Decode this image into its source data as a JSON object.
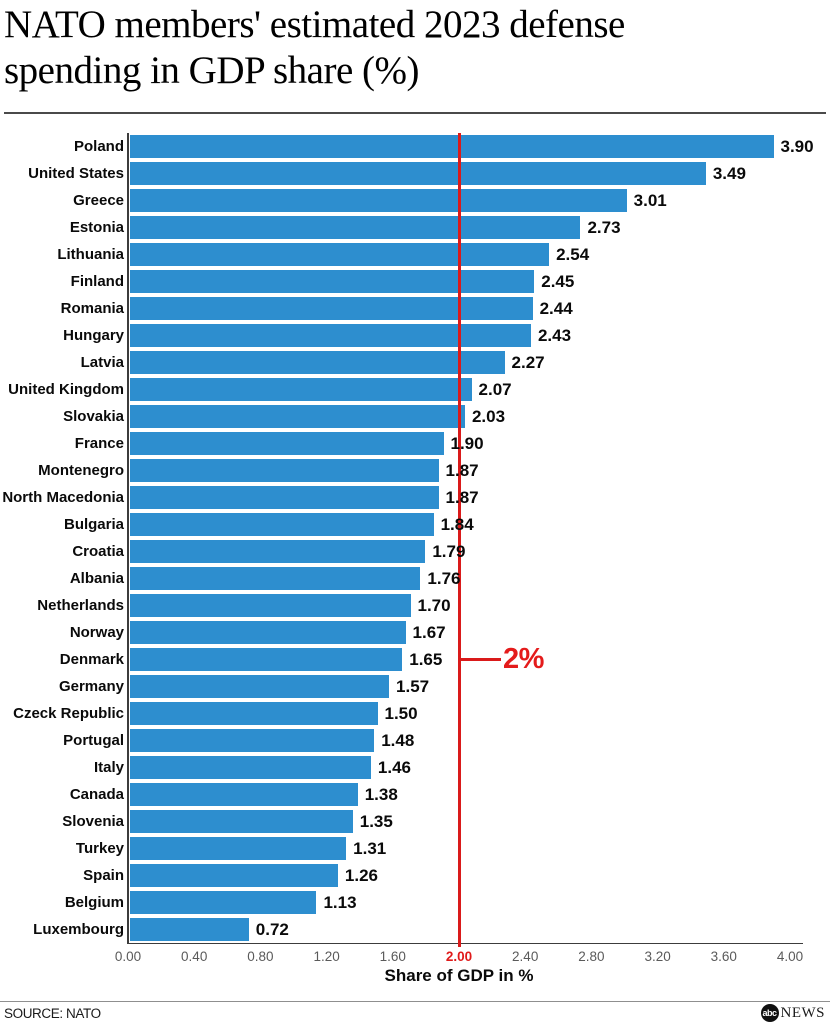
{
  "title": "NATO members' estimated 2023 defense spending in GDP share (%)",
  "title_lines": [
    "NATO members' estimated 2023 defense",
    "spending in GDP share (%)"
  ],
  "colors": {
    "bar": "#2d8ecf",
    "reference_red": "#da1a1a",
    "axis": "#3c3c3c",
    "tick_text": "#5a5a5a"
  },
  "chart_data": {
    "type": "bar",
    "orientation": "horizontal",
    "title": "NATO members' estimated 2023 defense spending in GDP share (%)",
    "categories": [
      "Poland",
      "United States",
      "Greece",
      "Estonia",
      "Lithuania",
      "Finland",
      "Romania",
      "Hungary",
      "Latvia",
      "United Kingdom",
      "Slovakia",
      "France",
      "Montenegro",
      "North Macedonia",
      "Bulgaria",
      "Croatia",
      "Albania",
      "Netherlands",
      "Norway",
      "Denmark",
      "Germany",
      "Czeck Republic",
      "Portugal",
      "Italy",
      "Canada",
      "Slovenia",
      "Turkey",
      "Spain",
      "Belgium",
      "Luxembourg"
    ],
    "values": [
      3.9,
      3.49,
      3.01,
      2.73,
      2.54,
      2.45,
      2.44,
      2.43,
      2.27,
      2.07,
      2.03,
      1.9,
      1.87,
      1.87,
      1.84,
      1.79,
      1.76,
      1.7,
      1.67,
      1.65,
      1.57,
      1.5,
      1.48,
      1.46,
      1.38,
      1.35,
      1.31,
      1.26,
      1.13,
      0.72
    ],
    "values_display": [
      "3.90",
      "3.49",
      "3.01",
      "2.73",
      "2.54",
      "2.45",
      "2.44",
      "2.43",
      "2.27",
      "2.07",
      "2.03",
      "1.90",
      "1.87",
      "1.87",
      "1.84",
      "1.79",
      "1.76",
      "1.70",
      "1.67",
      "1.65",
      "1.57",
      "1.50",
      "1.48",
      "1.46",
      "1.38",
      "1.35",
      "1.31",
      "1.26",
      "1.13",
      "0.72"
    ],
    "xlabel": "Share of GDP in %",
    "xlim": [
      0.0,
      4.0
    ],
    "xticks": [
      "0.00",
      "0.40",
      "0.80",
      "1.20",
      "1.60",
      "2.00",
      "2.40",
      "2.80",
      "3.20",
      "3.60",
      "4.00"
    ],
    "highlighted_tick": "2.00",
    "grid": false,
    "legend": false,
    "reference_line": {
      "value": 2.0,
      "label": "2%",
      "label_at_category": "Denmark"
    }
  },
  "footer": {
    "source": "SOURCE: NATO",
    "logo_abc": "abc",
    "logo_news": "NEWS"
  }
}
